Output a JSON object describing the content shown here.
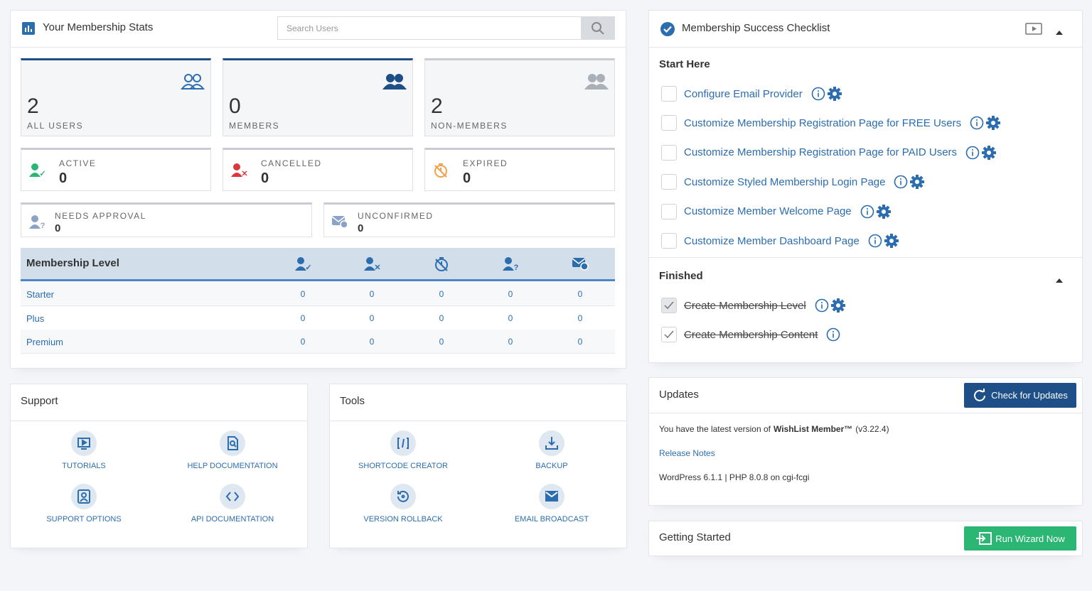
{
  "stats_panel": {
    "title": "Your Membership Stats",
    "search_placeholder": "Search Users",
    "big_cards": [
      {
        "value": 2,
        "label": "ALL USERS"
      },
      {
        "value": 0,
        "label": "MEMBERS"
      },
      {
        "value": 2,
        "label": "NON-MEMBERS"
      }
    ],
    "status_cards": [
      {
        "label": "ACTIVE",
        "value": 0
      },
      {
        "label": "CANCELLED",
        "value": 0
      },
      {
        "label": "EXPIRED",
        "value": 0
      }
    ],
    "pending_cards": [
      {
        "label": "NEEDS APPROVAL",
        "value": 0
      },
      {
        "label": "UNCONFIRMED",
        "value": 0
      }
    ],
    "table": {
      "header": "Membership Level",
      "rows": [
        {
          "level": "Starter",
          "counts": [
            0,
            0,
            0,
            0,
            0
          ]
        },
        {
          "level": "Plus",
          "counts": [
            0,
            0,
            0,
            0,
            0
          ]
        },
        {
          "level": "Premium",
          "counts": [
            0,
            0,
            0,
            0,
            0
          ]
        }
      ]
    }
  },
  "support": {
    "title": "Support",
    "items": [
      "TUTORIALS",
      "HELP DOCUMENTATION",
      "SUPPORT OPTIONS",
      "API DOCUMENTATION"
    ]
  },
  "tools": {
    "title": "Tools",
    "items": [
      "SHORTCODE CREATOR",
      "BACKUP",
      "VERSION ROLLBACK",
      "EMAIL BROADCAST"
    ]
  },
  "checklist": {
    "title": "Membership Success Checklist",
    "start_heading": "Start Here",
    "start_items": [
      "Configure Email Provider",
      "Customize Membership Registration Page for FREE Users",
      "Customize Membership Registration Page for PAID Users",
      "Customize Styled Membership Login Page",
      "Customize Member Welcome Page",
      "Customize Member Dashboard Page"
    ],
    "finished_heading": "Finished",
    "finished_items": [
      "Create Membership Level",
      "Create Membership Content"
    ]
  },
  "updates": {
    "title": "Updates",
    "button": "Check for Updates",
    "message_prefix": "You have the latest version of",
    "product": "WishList Member™",
    "version": "(v3.22.4)",
    "release_notes": "Release Notes",
    "environment": "WordPress 6.1.1 | PHP 8.0.8 on cgi-fcgi"
  },
  "getting_started": {
    "title": "Getting Started",
    "button": "Run Wizard Now"
  }
}
